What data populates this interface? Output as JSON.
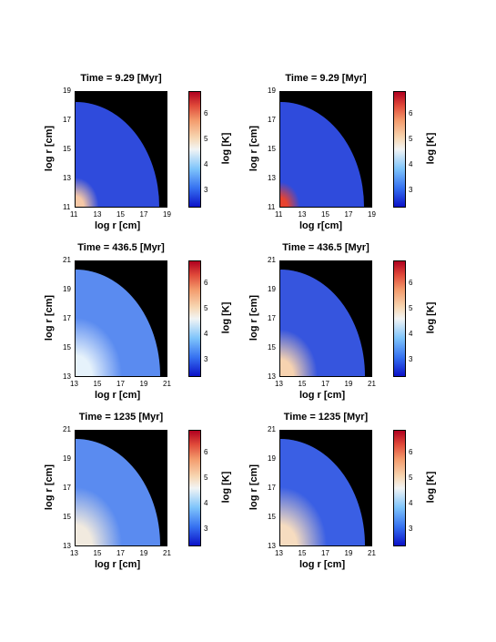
{
  "colors": {
    "background": "#000000",
    "low": "#1a2fd8",
    "mid": "#f2f4f4",
    "high": "#b0001f"
  },
  "chart_data": [
    {
      "type": "heatmap",
      "title": "Time = 9.29 [Myr]",
      "xlabel": "log r [cm]",
      "ylabel": "log r [cm]",
      "colorbar_label": "log [K]",
      "xticks": [
        "11",
        "13",
        "15",
        "17",
        "19"
      ],
      "yticks": [
        "11",
        "13",
        "15",
        "17",
        "19"
      ],
      "cbar_ticks": [
        "3",
        "4",
        "5",
        "6"
      ],
      "xlim": [
        11,
        19
      ],
      "ylim": [
        11,
        19
      ],
      "clim": [
        2.3,
        6.9
      ],
      "outer_radius": 18.2,
      "core_radius": 13.0,
      "core_color": "#f6c8a6",
      "shell_color": "#2f4bdc"
    },
    {
      "type": "heatmap",
      "title": "Time = 9.29 [Myr]",
      "xlabel": "log r[cm]",
      "ylabel": "log r [cm]",
      "colorbar_label": "log [K]",
      "xticks": [
        "11",
        "13",
        "15",
        "17",
        "19"
      ],
      "yticks": [
        "11",
        "13",
        "15",
        "17",
        "19"
      ],
      "cbar_ticks": [
        "3",
        "4",
        "5",
        "6"
      ],
      "xlim": [
        11,
        19
      ],
      "ylim": [
        11,
        19
      ],
      "clim": [
        2.3,
        6.9
      ],
      "outer_radius": 18.2,
      "core_radius": 12.7,
      "core_color": "#e8432f",
      "shell_color": "#2f4bdc"
    },
    {
      "type": "heatmap",
      "title": "Time = 436.5 [Myr]",
      "xlabel": "log r [cm]",
      "ylabel": "log r [cm]",
      "colorbar_label": "log [K]",
      "xticks": [
        "13",
        "15",
        "17",
        "19",
        "21"
      ],
      "yticks": [
        "13",
        "15",
        "17",
        "19",
        "21"
      ],
      "cbar_ticks": [
        "3",
        "4",
        "5",
        "6"
      ],
      "xlim": [
        13,
        21
      ],
      "ylim": [
        13,
        21
      ],
      "clim": [
        2.3,
        6.9
      ],
      "outer_radius": 20.3,
      "core_radius": 17.0,
      "core_color": "#e6f2fb",
      "shell_color": "#5a8bf0"
    },
    {
      "type": "heatmap",
      "title": "Time = 436.5 [Myr]",
      "xlabel": "log r [cm]",
      "ylabel": "log r [cm]",
      "colorbar_label": "log [K]",
      "xticks": [
        "13",
        "15",
        "17",
        "19",
        "21"
      ],
      "yticks": [
        "13",
        "15",
        "17",
        "19",
        "21"
      ],
      "cbar_ticks": [
        "3",
        "4",
        "5",
        "6"
      ],
      "xlim": [
        13,
        21
      ],
      "ylim": [
        13,
        21
      ],
      "clim": [
        2.3,
        6.9
      ],
      "outer_radius": 20.3,
      "core_radius": 16.2,
      "core_color": "#f7d3b0",
      "shell_color": "#3655de"
    },
    {
      "type": "heatmap",
      "title": "Time = 1235 [Myr]",
      "xlabel": "log r [cm]",
      "ylabel": "log r [cm]",
      "colorbar_label": "log [K]",
      "xticks": [
        "13",
        "15",
        "17",
        "19",
        "21"
      ],
      "yticks": [
        "13",
        "15",
        "17",
        "19",
        "21"
      ],
      "cbar_ticks": [
        "3",
        "4",
        "5",
        "6"
      ],
      "xlim": [
        13,
        21
      ],
      "ylim": [
        13,
        21
      ],
      "clim": [
        2.3,
        6.9
      ],
      "outer_radius": 20.3,
      "core_radius": 17.0,
      "core_color": "#f1eadf",
      "shell_color": "#5a8bf0"
    },
    {
      "type": "heatmap",
      "title": "Time = 1235 [Myr]",
      "xlabel": "log r [cm]",
      "ylabel": "log r [cm]",
      "colorbar_label": "log [K]",
      "xticks": [
        "13",
        "15",
        "17",
        "19",
        "21"
      ],
      "yticks": [
        "13",
        "15",
        "17",
        "19",
        "21"
      ],
      "cbar_ticks": [
        "3",
        "4",
        "5",
        "6"
      ],
      "xlim": [
        13,
        21
      ],
      "ylim": [
        13,
        21
      ],
      "clim": [
        2.3,
        6.9
      ],
      "outer_radius": 20.3,
      "core_radius": 17.0,
      "core_color": "#f6dcc0",
      "shell_color": "#3a5fe4"
    }
  ]
}
